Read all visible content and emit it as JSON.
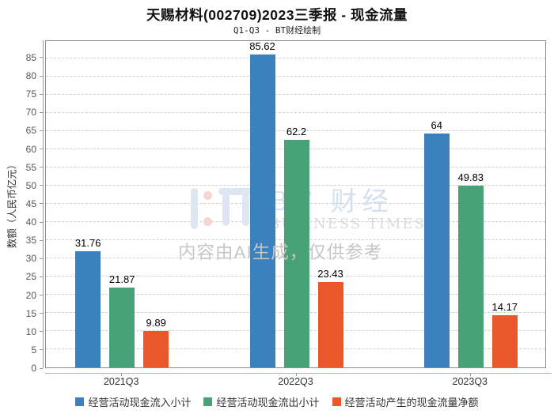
{
  "title": "天赐材料(002709)2023三季报 - 现金流量",
  "subtitle": "Q1-Q3 - BT财经绘制",
  "watermark": {
    "logo_main": "BT 财经",
    "logo_sub": "BUSINESS TIMES",
    "ai_note": "内容由AI生成，仅供参考"
  },
  "chart_data": {
    "type": "bar",
    "title": "天赐材料(002709)2023三季报 - 现金流量",
    "subtitle": "Q1-Q3 - BT财经绘制",
    "ylabel": "数额（人民币亿元）",
    "xlabel": "",
    "categories": [
      "2021Q3",
      "2022Q3",
      "2023Q3"
    ],
    "series": [
      {
        "name": "经营活动现金流入小计",
        "color": "#3a81bd",
        "values": [
          31.76,
          85.62,
          64
        ]
      },
      {
        "name": "经营活动现金流出小计",
        "color": "#47a377",
        "values": [
          21.87,
          62.2,
          49.83
        ]
      },
      {
        "name": "经营活动产生的现金流量净额",
        "color": "#e9572b",
        "values": [
          9.89,
          23.43,
          14.17
        ]
      }
    ],
    "ylim": [
      0,
      89.75
    ],
    "yticks": [
      0,
      5,
      10,
      15,
      20,
      25,
      30,
      35,
      40,
      45,
      50,
      55,
      60,
      65,
      70,
      75,
      80,
      85
    ],
    "grid": "horizontal-dashed",
    "legend_position": "bottom"
  }
}
